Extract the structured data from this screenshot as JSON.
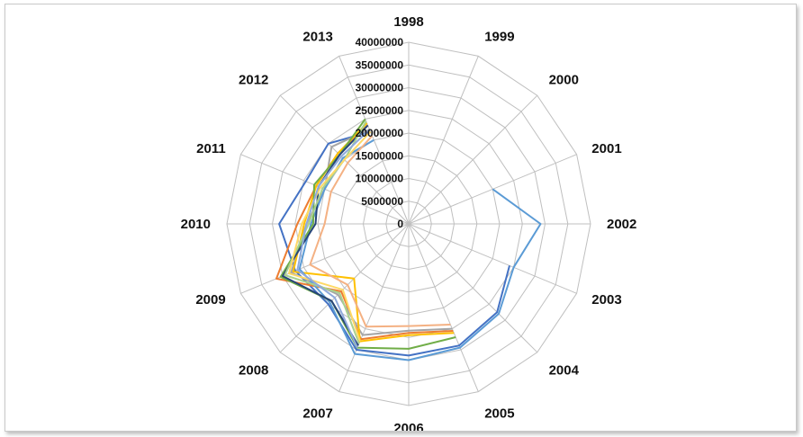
{
  "chart_data": {
    "type": "radar",
    "categories": [
      "1998",
      "1999",
      "2000",
      "2001",
      "2002",
      "2003",
      "2004",
      "2005",
      "2006",
      "2007",
      "2008",
      "2009",
      "2010",
      "2011",
      "2012",
      "2013"
    ],
    "rlim": [
      0,
      40000000
    ],
    "tick_values": [
      0,
      5000000,
      10000000,
      15000000,
      20000000,
      25000000,
      30000000,
      35000000,
      40000000
    ],
    "tick_labels": [
      "0",
      "5000000",
      "10000000",
      "15000000",
      "20000000",
      "25000000",
      "30000000",
      "35000000",
      "40000000"
    ],
    "grid": true,
    "legend": "none",
    "series": [
      {
        "color": "#4472c4",
        "values": [
          null,
          null,
          null,
          null,
          null,
          24000000,
          27500000,
          29000000,
          29000000,
          30000000,
          25000000,
          27000000,
          28500000,
          24500000,
          25000000,
          22000000
        ]
      },
      {
        "color": "#ed7d31",
        "values": [
          null,
          null,
          null,
          null,
          null,
          null,
          null,
          25500000,
          24000000,
          27500000,
          21000000,
          31500000,
          24500000,
          22000000,
          22000000,
          23500000
        ]
      },
      {
        "color": "#a5a5a5",
        "values": [
          null,
          null,
          null,
          null,
          null,
          null,
          null,
          25000000,
          23500000,
          26500000,
          22000000,
          28000000,
          22500000,
          20000000,
          24000000,
          22500000
        ]
      },
      {
        "color": "#ffc000",
        "values": [
          null,
          null,
          null,
          null,
          null,
          null,
          null,
          26000000,
          24500000,
          28000000,
          17000000,
          27500000,
          23000000,
          22000000,
          22000000,
          24000000
        ]
      },
      {
        "color": "#5b9bd5",
        "values": [
          null,
          null,
          null,
          20000000,
          29000000,
          25000000,
          28000000,
          29500000,
          30000000,
          31000000,
          24500000,
          26000000,
          21500000,
          20000000,
          20500000,
          20000000
        ]
      },
      {
        "color": "#70ad47",
        "values": [
          null,
          null,
          null,
          null,
          null,
          null,
          null,
          27000000,
          27500000,
          29500000,
          24000000,
          30500000,
          21000000,
          22500000,
          21500000,
          25000000
        ]
      },
      {
        "color": "#264478",
        "values": [
          null,
          null,
          null,
          null,
          null,
          null,
          null,
          null,
          null,
          29000000,
          24000000,
          30000000,
          20500000,
          21500000,
          21500000,
          23500000
        ]
      },
      {
        "color": "#f4b183",
        "values": [
          null,
          null,
          null,
          null,
          null,
          null,
          null,
          24000000,
          22500000,
          24500000,
          19000000,
          23500000,
          18500000,
          18500000,
          19000000,
          21000000
        ]
      },
      {
        "color": "#a9d18e",
        "values": [
          null,
          null,
          null,
          null,
          null,
          null,
          null,
          null,
          null,
          28500000,
          21500000,
          29500000,
          22000000,
          20500000,
          20000000,
          24500000
        ]
      },
      {
        "color": "#ffd966",
        "values": [
          null,
          null,
          null,
          null,
          null,
          null,
          null,
          null,
          null,
          28000000,
          20500000,
          28500000,
          23500000,
          21000000,
          20000000,
          22000000
        ]
      },
      {
        "color": "#8faadc",
        "values": [
          null,
          null,
          null,
          null,
          null,
          null,
          null,
          null,
          null,
          29500000,
          23000000,
          26500000,
          22500000,
          21500000,
          21000000,
          22500000
        ]
      }
    ]
  }
}
